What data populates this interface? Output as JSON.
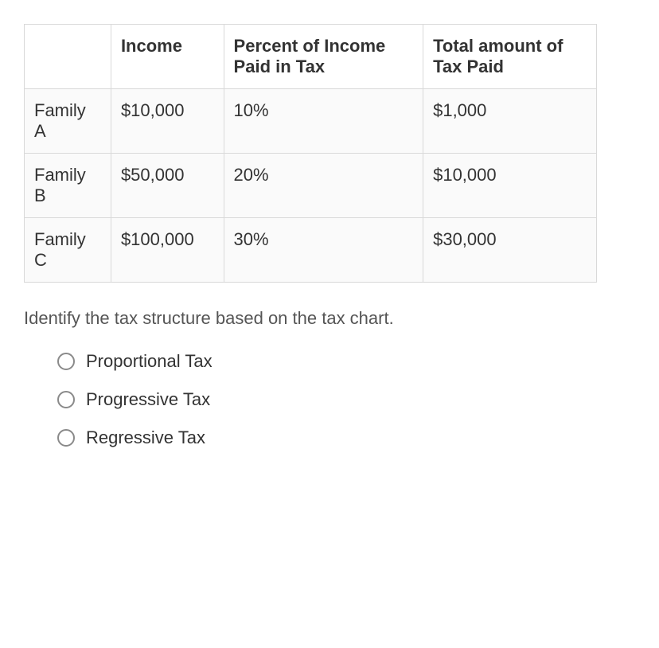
{
  "table": {
    "columns": [
      "",
      "Income",
      "Percent of Income Paid in Tax",
      "Total amount of Tax Paid"
    ],
    "rows": [
      {
        "name": "Family A",
        "income": "$10,000",
        "percent": "10%",
        "total": "$1,000"
      },
      {
        "name": "Family B",
        "income": "$50,000",
        "percent": "20%",
        "total": "$10,000"
      },
      {
        "name": "Family C",
        "income": "$100,000",
        "percent": "30%",
        "total": "$30,000"
      }
    ],
    "border_color": "#d9d9d9",
    "row_bg": "#fafafa",
    "font_size": 22,
    "text_color": "#333333"
  },
  "question": "Identify the tax structure based on the tax chart.",
  "options": [
    {
      "label": "Proportional Tax"
    },
    {
      "label": "Progressive Tax"
    },
    {
      "label": "Regressive Tax"
    }
  ],
  "radio_border_color": "#8a8a8a"
}
